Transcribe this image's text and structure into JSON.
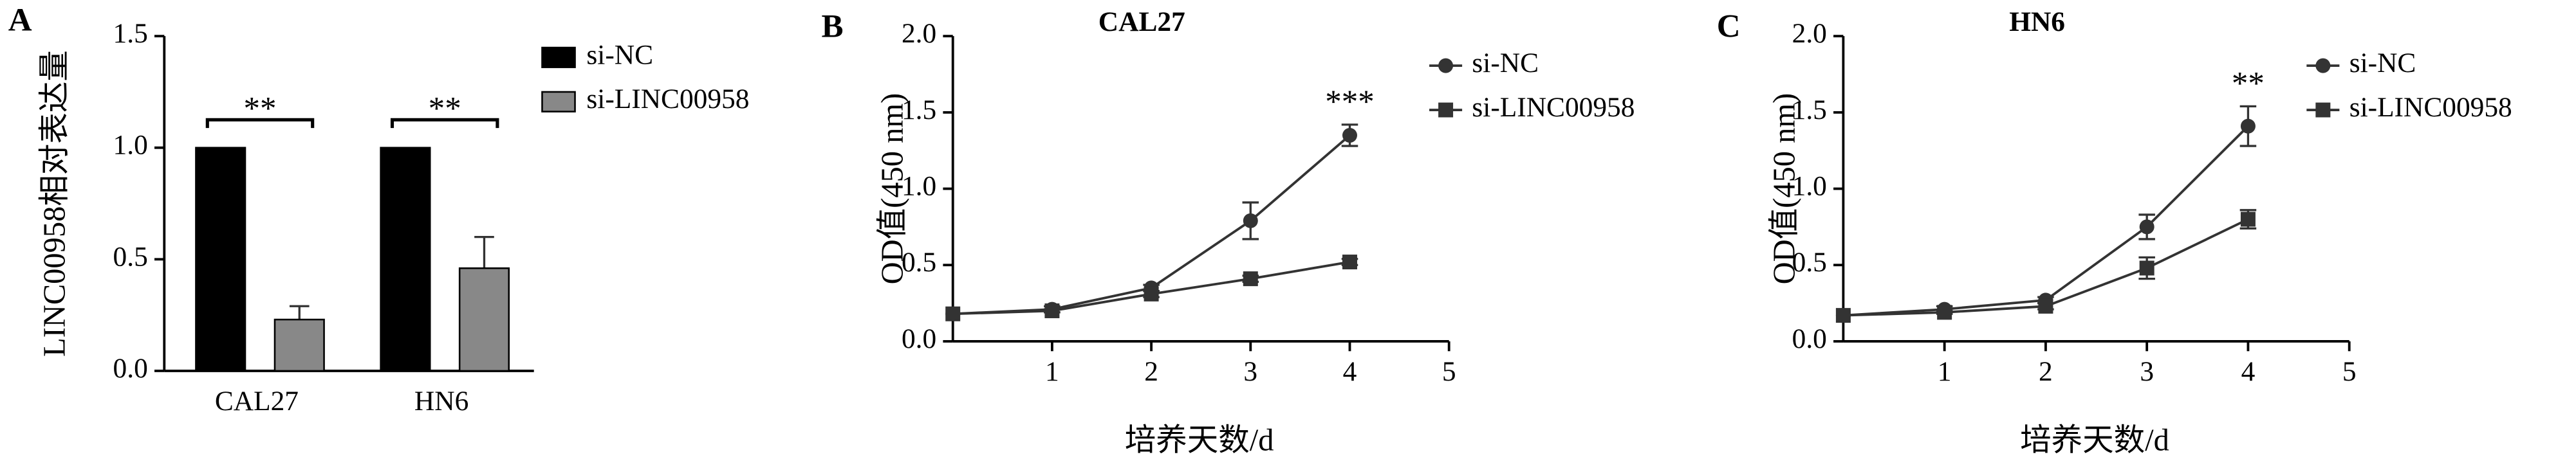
{
  "chart_data": [
    {
      "type": "bar",
      "panel": "A",
      "y_label": "LINC00958相对表达量",
      "categories": [
        "CAL27",
        "HN6"
      ],
      "series": [
        {
          "name": "si-NC",
          "color": "#000000",
          "values": [
            1.0,
            1.0
          ],
          "errors": [
            0,
            0
          ]
        },
        {
          "name": "si-LINC00958",
          "color": "#888888",
          "values": [
            0.23,
            0.46
          ],
          "errors": [
            0.06,
            0.14
          ]
        }
      ],
      "annotations": [
        "**",
        "**"
      ],
      "ylim": [
        0,
        1.5
      ],
      "yticks": [
        {
          "value": 0,
          "label": "0.0"
        },
        {
          "value": 0.5,
          "label": "0.5"
        },
        {
          "value": 1,
          "label": "1.0"
        },
        {
          "value": 1.5,
          "label": "1.5"
        }
      ]
    },
    {
      "type": "line",
      "panel": "B",
      "title": "CAL27",
      "x_label": "培养天数/d",
      "y_label": "OD值(450 nm)",
      "x": [
        0,
        1,
        2,
        3,
        4
      ],
      "series": [
        {
          "name": "si-NC",
          "color": "#333333",
          "marker": "circle",
          "values": [
            0.18,
            0.21,
            0.35,
            0.79,
            1.35
          ],
          "errors": [
            0,
            0.02,
            0.02,
            0.12,
            0.07
          ]
        },
        {
          "name": "si-LINC00958",
          "color": "#333333",
          "marker": "square",
          "values": [
            0.18,
            0.2,
            0.31,
            0.41,
            0.52
          ],
          "errors": [
            0,
            0.01,
            0.02,
            0.02,
            0.02
          ]
        }
      ],
      "annotation": "***",
      "xlim": [
        0,
        5
      ],
      "xticks": [
        1,
        2,
        3,
        4,
        5
      ],
      "ylim": [
        0,
        2
      ],
      "yticks": [
        {
          "value": 0,
          "label": "0.0"
        },
        {
          "value": 0.5,
          "label": "0.5"
        },
        {
          "value": 1,
          "label": "1.0"
        },
        {
          "value": 1.5,
          "label": "1.5"
        },
        {
          "value": 2,
          "label": "2.0"
        }
      ]
    },
    {
      "type": "line",
      "panel": "C",
      "title": "HN6",
      "x_label": "培养天数/d",
      "y_label": "OD值(450 nm)",
      "x": [
        0,
        1,
        2,
        3,
        4
      ],
      "series": [
        {
          "name": "si-NC",
          "color": "#333333",
          "marker": "circle",
          "values": [
            0.17,
            0.21,
            0.27,
            0.75,
            1.41
          ],
          "errors": [
            0,
            0.02,
            0.02,
            0.08,
            0.13
          ]
        },
        {
          "name": "si-LINC00958",
          "color": "#333333",
          "marker": "square",
          "values": [
            0.17,
            0.19,
            0.23,
            0.48,
            0.8
          ],
          "errors": [
            0,
            0.01,
            0.02,
            0.07,
            0.06
          ]
        }
      ],
      "annotation": "**",
      "xlim": [
        0,
        5
      ],
      "xticks": [
        1,
        2,
        3,
        4,
        5
      ],
      "ylim": [
        0,
        2
      ],
      "yticks": [
        {
          "value": 0,
          "label": "0.0"
        },
        {
          "value": 0.5,
          "label": "0.5"
        },
        {
          "value": 1,
          "label": "1.0"
        },
        {
          "value": 1.5,
          "label": "1.5"
        },
        {
          "value": 2,
          "label": "2.0"
        }
      ]
    }
  ]
}
